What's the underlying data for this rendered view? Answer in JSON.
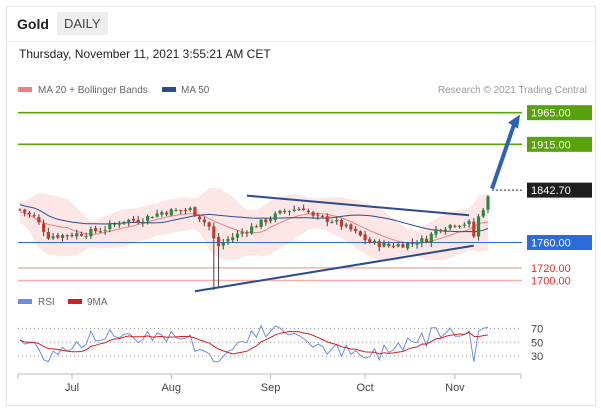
{
  "header": {
    "title": "Gold",
    "period": "DAILY"
  },
  "timestamp": "Thursday, November 11, 2021 3:55:21 AM CET",
  "legend": {
    "ma20": "MA 20 + Bollinger Bands",
    "ma50": "MA 50",
    "ma20_color": "#f08080",
    "ma50_color": "#2b4c8c"
  },
  "credit": "Research © 2021 Trading Central",
  "rsi_legend": {
    "rsi": "RSI",
    "ma9": "9MA",
    "rsi_color": "#6b8fe0",
    "ma9_color": "#d62020"
  },
  "chart_data": {
    "type": "candlestick",
    "instrument": "Gold",
    "interval": "daily",
    "x_ticks": [
      "Jul",
      "Aug",
      "Sep",
      "Oct",
      "Nov"
    ],
    "ylim": [
      1685,
      1985
    ],
    "last_price": 1842.7,
    "levels": [
      {
        "value": 1965.0,
        "label": "1965.00",
        "type": "resistance",
        "color": "#58a20c"
      },
      {
        "value": 1915.0,
        "label": "1915.00",
        "type": "resistance",
        "color": "#58a20c"
      },
      {
        "value": 1760.0,
        "label": "1760.00",
        "type": "pivot",
        "color": "#2b6cd8"
      },
      {
        "value": 1720.0,
        "label": "1720.00",
        "type": "support",
        "color": "#e85c5c"
      },
      {
        "value": 1700.0,
        "label": "1700.00",
        "type": "support",
        "color": "#e85c5c"
      }
    ],
    "trendlines": [
      {
        "from": [
          "Aug 27",
          1834
        ],
        "to": [
          "Nov 8",
          1803
        ]
      },
      {
        "from": [
          "Aug 9",
          1683
        ],
        "to": [
          "Nov 9",
          1755
        ]
      }
    ],
    "projection": {
      "from": 1845,
      "to": 1965
    },
    "rsi": {
      "levels": [
        70,
        50,
        30
      ],
      "ylim": [
        10,
        85
      ]
    }
  }
}
